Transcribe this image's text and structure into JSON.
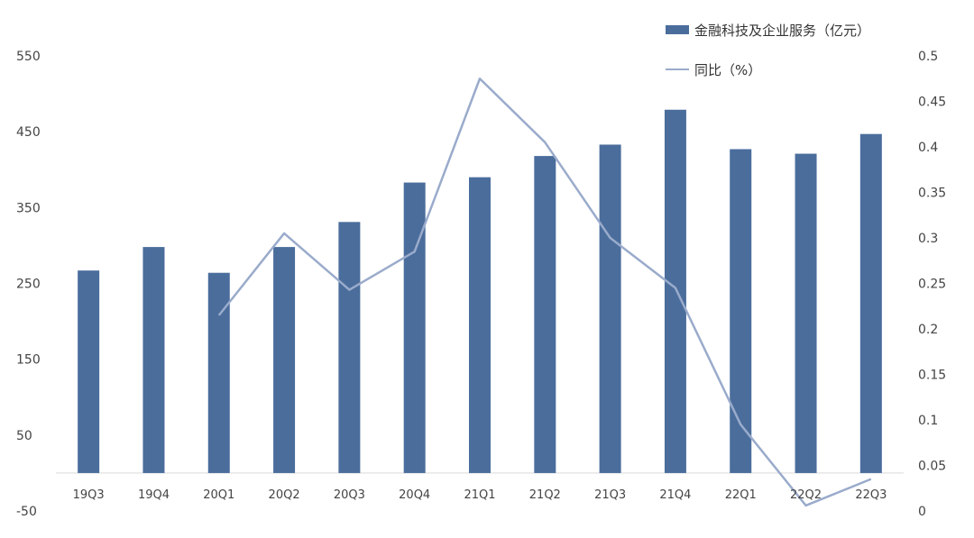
{
  "chart_data": {
    "type": "bar",
    "categories": [
      "19Q3",
      "19Q4",
      "20Q1",
      "20Q2",
      "20Q3",
      "20Q4",
      "21Q1",
      "21Q2",
      "21Q3",
      "21Q4",
      "22Q1",
      "22Q2",
      "22Q3"
    ],
    "series": [
      {
        "name": "金融科技及企业服务（亿元）",
        "type": "bar",
        "axis": "left",
        "values": [
          267,
          298,
          264,
          298,
          331,
          383,
          390,
          418,
          433,
          479,
          427,
          421,
          447
        ]
      },
      {
        "name": "同比（%）",
        "type": "line",
        "axis": "right",
        "values": [
          null,
          null,
          0.215,
          0.305,
          0.243,
          0.285,
          0.475,
          0.405,
          0.3,
          0.245,
          0.095,
          0.006,
          0.035
        ]
      }
    ],
    "left_axis": {
      "ylim": [
        -50,
        550
      ],
      "ticks": [
        "550",
        "450",
        "350",
        "250",
        "150",
        "50",
        "-50"
      ]
    },
    "right_axis": {
      "ylim": [
        0,
        0.5
      ],
      "ticks": [
        "0.5",
        "0.45",
        "0.4",
        "0.35",
        "0.3",
        "0.25",
        "0.2",
        "0.15",
        "0.1",
        "0.05",
        "0"
      ]
    },
    "grid": false,
    "legend_position": "top-right",
    "colors": {
      "bar": "#4a6d9c",
      "line": "#9aabcb",
      "axis_line": "#d9d9d9"
    }
  }
}
